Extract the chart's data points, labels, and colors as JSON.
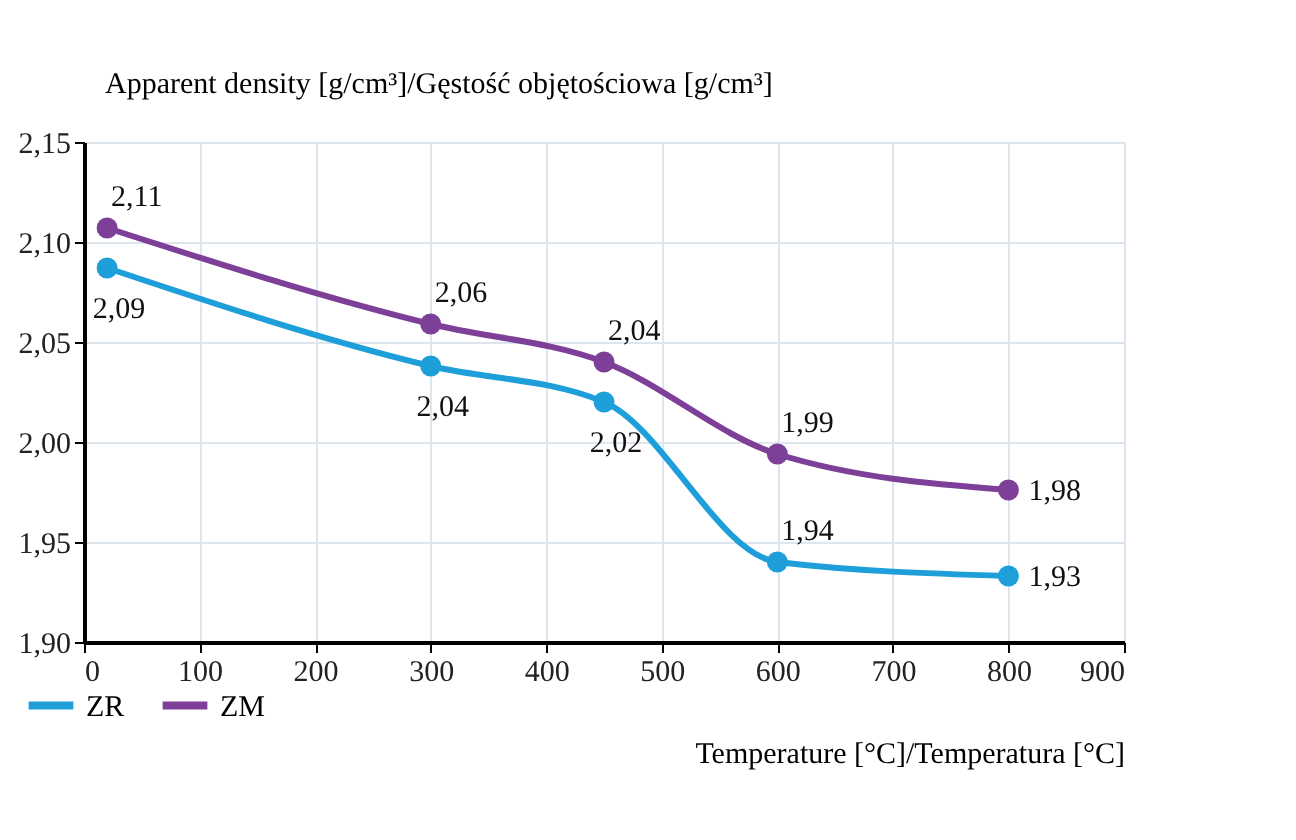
{
  "chart_data": {
    "type": "line",
    "ylabel": "Apparent density [g/cm³]/Gęstość objętościowa [g/cm³]",
    "xlabel": "Temperature [°C]/Temperatura [°C]",
    "x": [
      20,
      300,
      450,
      600,
      800
    ],
    "series": [
      {
        "name": "ZR",
        "color": "#1f9fd9",
        "values": [
          2.087,
          2.038,
          2.02,
          1.94,
          1.933
        ],
        "value_labels": [
          "2,09",
          "2,04",
          "2,02",
          "1,94",
          "1,93"
        ]
      },
      {
        "name": "ZM",
        "color": "#7e3f98",
        "values": [
          2.107,
          2.059,
          2.04,
          1.994,
          1.976
        ],
        "value_labels": [
          "2,11",
          "2,06",
          "2,04",
          "1,99",
          "1,98"
        ]
      }
    ],
    "xlim": [
      0,
      900
    ],
    "xticks": [
      0,
      100,
      200,
      300,
      400,
      500,
      600,
      700,
      800,
      900
    ],
    "ylim": [
      1.9,
      2.15
    ],
    "yticks": [
      {
        "value": 1.9,
        "label": "1,90"
      },
      {
        "value": 1.95,
        "label": "1,95"
      },
      {
        "value": 2.0,
        "label": "2,00"
      },
      {
        "value": 2.05,
        "label": "2,05"
      },
      {
        "value": 2.1,
        "label": "2,10"
      },
      {
        "value": 2.15,
        "label": "2,15"
      }
    ],
    "grid": true,
    "legend": "bottom left",
    "marker": "circle",
    "line_style": "solid"
  }
}
